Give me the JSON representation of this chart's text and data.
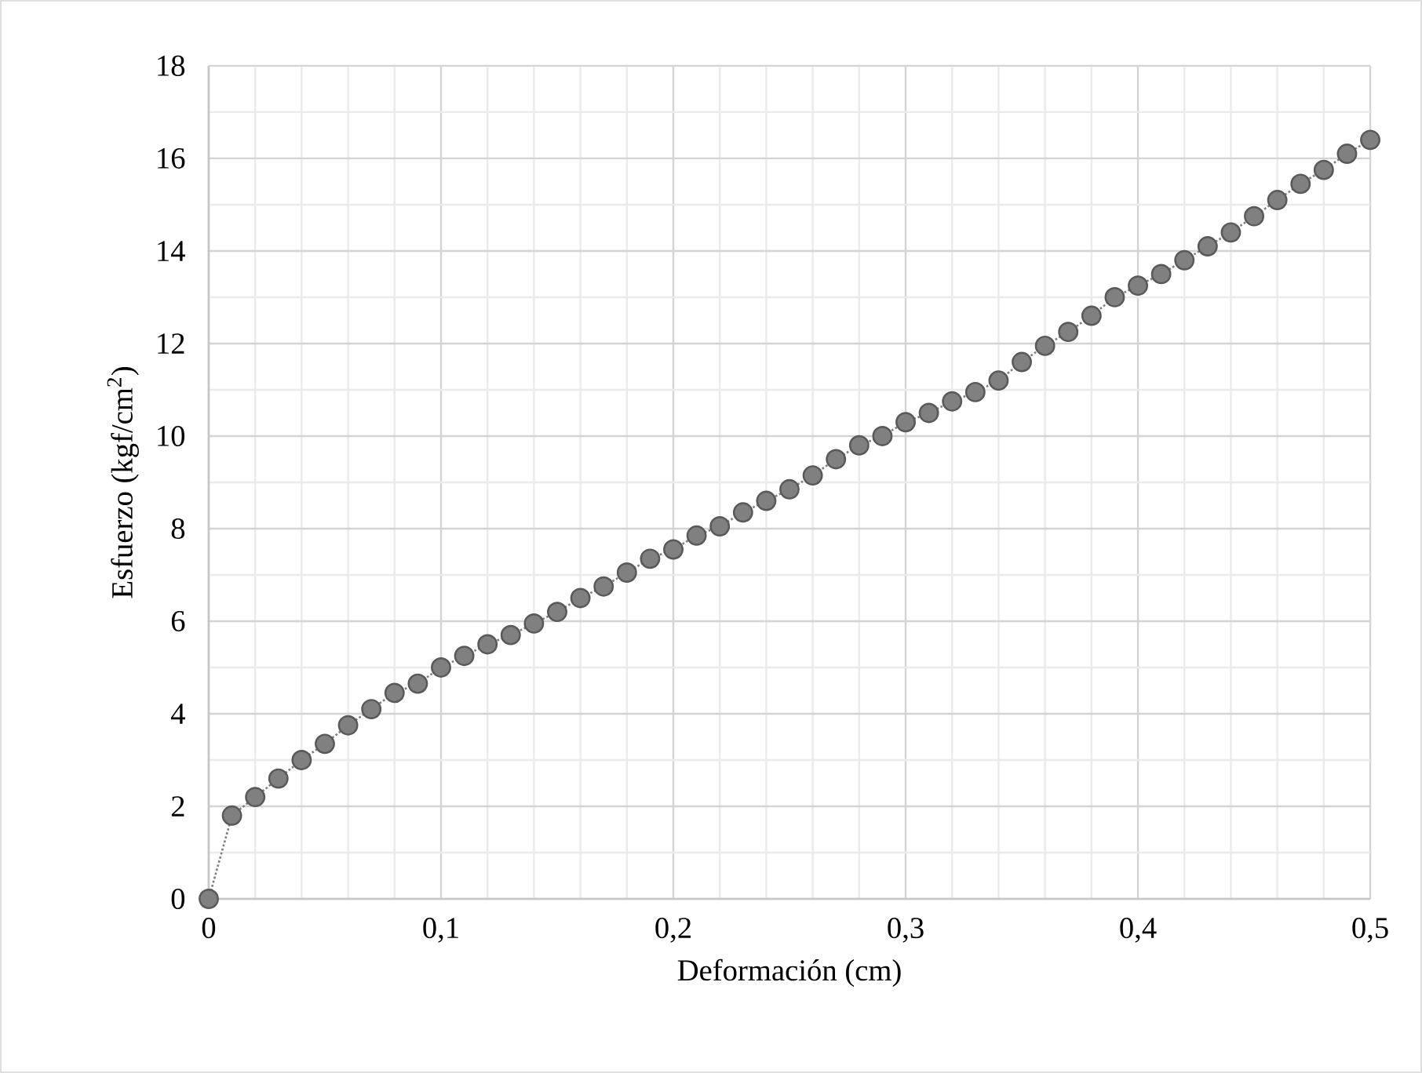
{
  "chart_data": {
    "type": "line",
    "xlabel": "Deformación (cm)",
    "ylabel": "Esfuerzo (kgf/cm$^{2}$)",
    "x": [
      0,
      0.01,
      0.02,
      0.03,
      0.04,
      0.05,
      0.06,
      0.07,
      0.08,
      0.09,
      0.1,
      0.11,
      0.12,
      0.13,
      0.14,
      0.15,
      0.16,
      0.17,
      0.18,
      0.19,
      0.2,
      0.21,
      0.22,
      0.23,
      0.24,
      0.25,
      0.26,
      0.27,
      0.28,
      0.29,
      0.3,
      0.31,
      0.32,
      0.33,
      0.34,
      0.35,
      0.36,
      0.37,
      0.38,
      0.39,
      0.4,
      0.41,
      0.42,
      0.43,
      0.44,
      0.45,
      0.46,
      0.47,
      0.48,
      0.49,
      0.5
    ],
    "series": [
      {
        "color": "#808080",
        "values": [
          0,
          1.8,
          2.2,
          2.6,
          3.0,
          3.35,
          3.75,
          4.1,
          4.45,
          4.65,
          5.0,
          5.25,
          5.5,
          5.7,
          5.95,
          6.2,
          6.5,
          6.75,
          7.05,
          7.35,
          7.55,
          7.85,
          8.05,
          8.35,
          8.6,
          8.85,
          9.15,
          9.5,
          9.8,
          10.0,
          10.3,
          10.5,
          10.75,
          10.95,
          11.2,
          11.6,
          11.95,
          12.25,
          12.6,
          13.0,
          13.25,
          13.5,
          13.8,
          14.1,
          14.4,
          14.75,
          15.1,
          15.45,
          15.75,
          16.1,
          16.4
        ]
      }
    ],
    "xlim": [
      0,
      0.5
    ],
    "ylim": [
      0,
      18
    ],
    "xticks": [
      0,
      {
        "value": 0.1,
        "label": "0,1"
      },
      {
        "value": 0.2,
        "label": "0,2"
      },
      {
        "value": 0.3,
        "label": "0,3"
      },
      {
        "value": 0.4,
        "label": "0,4"
      },
      {
        "value": 0.5,
        "label": "0,5"
      }
    ],
    "yticks": [
      0,
      2,
      4,
      6,
      8,
      10,
      12,
      14,
      16,
      18
    ],
    "grid": true,
    "marker": "circle",
    "line_style": "dotted"
  }
}
